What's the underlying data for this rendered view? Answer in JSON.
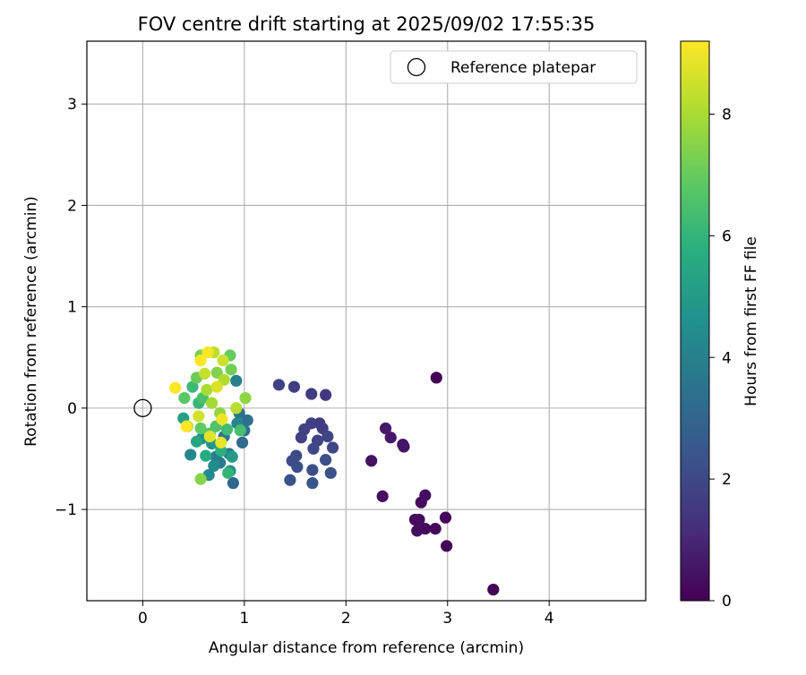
{
  "chart_data": {
    "type": "scatter",
    "title": "FOV centre drift starting at 2025/09/02 17:55:35",
    "xlabel": "Angular distance from reference (arcmin)",
    "ylabel": "Rotation from reference (arcmin)",
    "xlim": [
      -0.55,
      4.95
    ],
    "ylim": [
      -1.9,
      3.62
    ],
    "xticks": [
      0,
      1,
      2,
      3,
      4
    ],
    "xtick_labels": [
      "0",
      "1",
      "2",
      "3",
      "4"
    ],
    "yticks": [
      -1,
      0,
      1,
      2,
      3
    ],
    "ytick_labels": [
      "−1",
      "0",
      "1",
      "2",
      "3"
    ],
    "grid": true,
    "legend": {
      "position": "top-right",
      "entries": [
        "Reference platepar"
      ]
    },
    "reference_point": {
      "x": 0,
      "y": 0
    },
    "colorbar": {
      "label": "Hours from first FF file",
      "min": 0,
      "max": 9.2,
      "ticks": [
        0,
        2,
        4,
        6,
        8
      ],
      "tick_labels": [
        "0",
        "2",
        "4",
        "6",
        "8"
      ],
      "colormap": "viridis"
    },
    "points": [
      {
        "x": 3.45,
        "y": -1.79,
        "h": 0.05
      },
      {
        "x": 2.99,
        "y": -1.36,
        "h": 0.1
      },
      {
        "x": 2.98,
        "y": -1.08,
        "h": 0.15
      },
      {
        "x": 2.88,
        "y": -1.19,
        "h": 0.2
      },
      {
        "x": 2.78,
        "y": -1.19,
        "h": 0.2
      },
      {
        "x": 2.72,
        "y": -1.1,
        "h": 0.25
      },
      {
        "x": 2.68,
        "y": -1.1,
        "h": 0.25
      },
      {
        "x": 2.7,
        "y": -1.21,
        "h": 0.3
      },
      {
        "x": 2.74,
        "y": -0.93,
        "h": 0.3
      },
      {
        "x": 2.78,
        "y": -0.86,
        "h": 0.35
      },
      {
        "x": 2.89,
        "y": 0.3,
        "h": 0.05
      },
      {
        "x": 2.36,
        "y": -0.87,
        "h": 0.4
      },
      {
        "x": 2.25,
        "y": -0.52,
        "h": 0.45
      },
      {
        "x": 2.56,
        "y": -0.36,
        "h": 0.5
      },
      {
        "x": 2.57,
        "y": -0.38,
        "h": 0.55
      },
      {
        "x": 2.44,
        "y": -0.29,
        "h": 0.6
      },
      {
        "x": 2.39,
        "y": -0.2,
        "h": 0.65
      },
      {
        "x": 1.8,
        "y": 0.13,
        "h": 1.5
      },
      {
        "x": 1.66,
        "y": 0.14,
        "h": 1.6
      },
      {
        "x": 1.49,
        "y": 0.21,
        "h": 1.7
      },
      {
        "x": 1.34,
        "y": 0.23,
        "h": 1.8
      },
      {
        "x": 1.74,
        "y": -0.15,
        "h": 1.6
      },
      {
        "x": 1.77,
        "y": -0.2,
        "h": 1.65
      },
      {
        "x": 1.66,
        "y": -0.15,
        "h": 1.7
      },
      {
        "x": 1.59,
        "y": -0.21,
        "h": 1.75
      },
      {
        "x": 1.56,
        "y": -0.29,
        "h": 1.8
      },
      {
        "x": 1.72,
        "y": -0.32,
        "h": 1.85
      },
      {
        "x": 1.82,
        "y": -0.28,
        "h": 1.9
      },
      {
        "x": 1.87,
        "y": -0.39,
        "h": 1.95
      },
      {
        "x": 1.68,
        "y": -0.4,
        "h": 2.0
      },
      {
        "x": 1.51,
        "y": -0.47,
        "h": 2.05
      },
      {
        "x": 1.47,
        "y": -0.52,
        "h": 2.1
      },
      {
        "x": 1.52,
        "y": -0.58,
        "h": 2.15
      },
      {
        "x": 1.67,
        "y": -0.61,
        "h": 2.2
      },
      {
        "x": 1.8,
        "y": -0.51,
        "h": 2.25
      },
      {
        "x": 1.85,
        "y": -0.64,
        "h": 2.3
      },
      {
        "x": 1.45,
        "y": -0.71,
        "h": 2.35
      },
      {
        "x": 1.67,
        "y": -0.74,
        "h": 2.4
      },
      {
        "x": 0.89,
        "y": -0.74,
        "h": 3.0
      },
      {
        "x": 0.98,
        "y": -0.34,
        "h": 3.2
      },
      {
        "x": 1.0,
        "y": -0.22,
        "h": 3.3
      },
      {
        "x": 1.03,
        "y": -0.12,
        "h": 3.4
      },
      {
        "x": 0.95,
        "y": -0.05,
        "h": 3.5
      },
      {
        "x": 0.8,
        "y": -0.28,
        "h": 3.6
      },
      {
        "x": 0.85,
        "y": -0.45,
        "h": 3.7
      },
      {
        "x": 0.76,
        "y": -0.54,
        "h": 3.8
      },
      {
        "x": 0.72,
        "y": -0.48,
        "h": 3.9
      },
      {
        "x": 0.92,
        "y": 0.27,
        "h": 4.0
      },
      {
        "x": 0.93,
        "y": -0.15,
        "h": 4.1
      },
      {
        "x": 0.47,
        "y": -0.46,
        "h": 4.2
      },
      {
        "x": 0.65,
        "y": -0.66,
        "h": 4.3
      },
      {
        "x": 0.7,
        "y": -0.57,
        "h": 4.4
      },
      {
        "x": 0.86,
        "y": -0.62,
        "h": 4.5
      },
      {
        "x": 0.58,
        "y": -0.3,
        "h": 4.6
      },
      {
        "x": 0.68,
        "y": -0.35,
        "h": 4.8
      },
      {
        "x": 0.88,
        "y": -0.48,
        "h": 5.0
      },
      {
        "x": 0.4,
        "y": -0.1,
        "h": 5.2
      },
      {
        "x": 0.53,
        "y": -0.33,
        "h": 5.4
      },
      {
        "x": 0.62,
        "y": -0.47,
        "h": 5.6
      },
      {
        "x": 0.77,
        "y": -0.42,
        "h": 5.8
      },
      {
        "x": 0.84,
        "y": -0.64,
        "h": 6.0
      },
      {
        "x": 0.55,
        "y": 0.05,
        "h": 6.1
      },
      {
        "x": 0.49,
        "y": 0.21,
        "h": 6.2
      },
      {
        "x": 0.83,
        "y": -0.21,
        "h": 6.3
      },
      {
        "x": 0.96,
        "y": -0.22,
        "h": 6.4
      },
      {
        "x": 0.59,
        "y": 0.1,
        "h": 6.5
      },
      {
        "x": 0.72,
        "y": -0.18,
        "h": 6.6
      },
      {
        "x": 0.66,
        "y": -0.25,
        "h": 6.7
      },
      {
        "x": 0.41,
        "y": 0.1,
        "h": 6.8
      },
      {
        "x": 0.57,
        "y": -0.2,
        "h": 6.9
      },
      {
        "x": 0.86,
        "y": 0.52,
        "h": 7.0
      },
      {
        "x": 0.53,
        "y": 0.3,
        "h": 7.1
      },
      {
        "x": 0.87,
        "y": 0.38,
        "h": 7.2
      },
      {
        "x": 0.57,
        "y": 0.52,
        "h": 7.3
      },
      {
        "x": 0.73,
        "y": 0.35,
        "h": 7.4
      },
      {
        "x": 0.57,
        "y": -0.7,
        "h": 7.5
      },
      {
        "x": 1.01,
        "y": 0.1,
        "h": 7.6
      },
      {
        "x": 0.76,
        "y": -0.05,
        "h": 7.7
      },
      {
        "x": 0.44,
        "y": -0.18,
        "h": 7.8
      },
      {
        "x": 0.68,
        "y": 0.05,
        "h": 7.9
      },
      {
        "x": 0.63,
        "y": 0.18,
        "h": 8.0
      },
      {
        "x": 0.8,
        "y": 0.28,
        "h": 8.1
      },
      {
        "x": 0.92,
        "y": 0.0,
        "h": 8.2
      },
      {
        "x": 0.7,
        "y": 0.55,
        "h": 8.3
      },
      {
        "x": 0.61,
        "y": 0.34,
        "h": 8.4
      },
      {
        "x": 0.79,
        "y": 0.47,
        "h": 8.5
      },
      {
        "x": 0.55,
        "y": -0.08,
        "h": 8.6
      },
      {
        "x": 0.73,
        "y": 0.21,
        "h": 8.7
      },
      {
        "x": 0.66,
        "y": -0.28,
        "h": 8.8
      },
      {
        "x": 0.77,
        "y": -0.34,
        "h": 8.9
      },
      {
        "x": 0.78,
        "y": -0.11,
        "h": 9.0
      },
      {
        "x": 0.64,
        "y": 0.55,
        "h": 9.1
      },
      {
        "x": 0.57,
        "y": 0.47,
        "h": 9.15
      },
      {
        "x": 0.32,
        "y": 0.2,
        "h": 9.2
      },
      {
        "x": 0.43,
        "y": -0.18,
        "h": 9.2
      }
    ]
  }
}
